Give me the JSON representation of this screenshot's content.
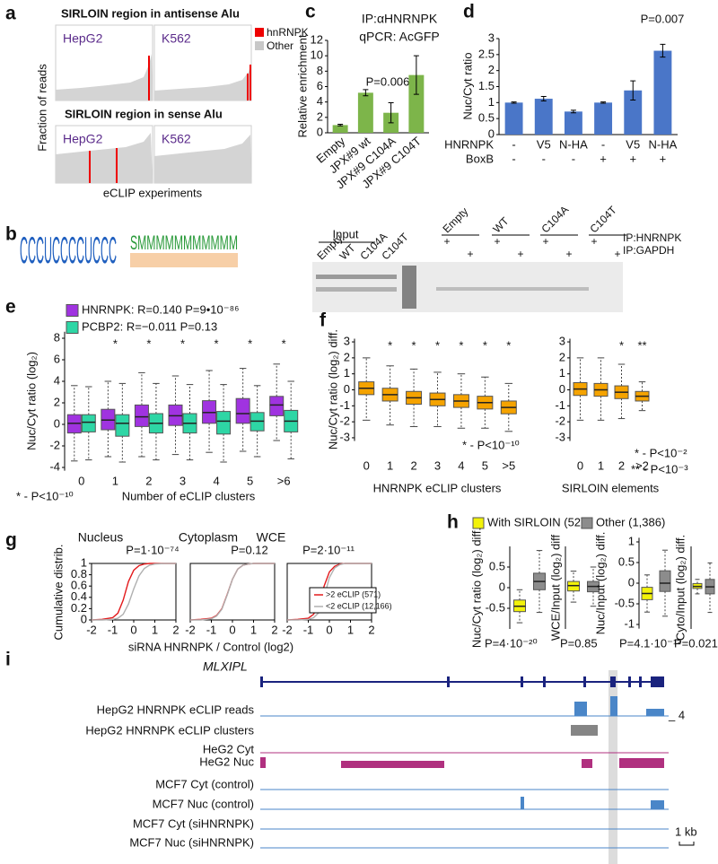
{
  "panel_labels": [
    "a",
    "b",
    "c",
    "d",
    "e",
    "f",
    "g",
    "h",
    "i"
  ],
  "panel_a": {
    "title_antisense": "SIRLOIN region in antisense Alu",
    "title_sense": "SIRLOIN region in sense Alu",
    "cells": [
      "HepG2",
      "K562",
      "HepG2",
      "K562"
    ],
    "legend": [
      "hnRNPK",
      "Other"
    ],
    "y_label": "Fraction of reads",
    "x_label": "eCLIP experiments"
  },
  "panel_b": {
    "logos": [
      "CCCUCCCCUCCC",
      "SMMMMMMMMMMM"
    ]
  },
  "blot": {
    "input": "Input",
    "lanes": [
      "Empty",
      "WT",
      "C104A",
      "C104T"
    ],
    "ip_groups": [
      "Empty",
      "WT",
      "C104A",
      "C104T"
    ],
    "signs": [
      "+",
      "+",
      "+",
      "+",
      "+",
      "+",
      "+",
      "+"
    ],
    "rows": [
      "IP:HNRNPK",
      "IP:GAPDH"
    ]
  },
  "panel_i": {
    "gene": "MLXIPL",
    "tracks": [
      "HepG2 HNRNPK eCLIP reads",
      "HepG2 HNRNPK eCLIP clusters",
      "HeG2 Cyt",
      "HeG2 Nuc",
      "MCF7 Cyt (control)",
      "MCF7 Nuc (control)",
      "MCF7 Cyt (siHNRNPK)",
      "MCF7 Nuc (siHNRNPK)"
    ],
    "scale": "_ 4",
    "scalebar": "1 kb"
  },
  "chart_data": [
    {
      "type": "bar",
      "title": "IP:αHNRNPK",
      "subtitle": "qPCR: AcGFP",
      "y_label": "Relative enrichment",
      "categories": [
        "Empty",
        "JPX#9 wt",
        "JPX#9 C104A",
        "JPX#9 C104T"
      ],
      "values": [
        1,
        5.2,
        2.6,
        7.5
      ],
      "errors": [
        0.1,
        0.4,
        1.3,
        2.5
      ],
      "color": "#7db54a",
      "ylim": [
        0,
        12
      ],
      "yticks": [
        0,
        2,
        4,
        6,
        8,
        10,
        12
      ],
      "annotations": [
        "P=0.006"
      ]
    },
    {
      "type": "bar",
      "y_label": "Nuc/Cyt ratio",
      "values": [
        1,
        1.12,
        0.72,
        1,
        1.38,
        2.62
      ],
      "errors": [
        0.02,
        0.07,
        0.04,
        0.02,
        0.3,
        0.2
      ],
      "color": "#4a76c8",
      "ylim": [
        0,
        3
      ],
      "yticks": [
        0,
        0.5,
        1,
        1.5,
        2,
        2.5,
        3
      ],
      "row_labels": [
        "HNRNPK",
        "BoxB"
      ],
      "rows": [
        [
          "-",
          "V5",
          "N-HA",
          "-",
          "V5",
          "N-HA"
        ],
        [
          "-",
          "-",
          "-",
          "+",
          "+",
          "+"
        ]
      ],
      "annotations": [
        "P=0.007"
      ]
    },
    {
      "type": "box",
      "y_label": "Nuc/Cyt ratio (log₂)",
      "x_label": "Number of eCLIP clusters",
      "annotations": [
        "* - P<10⁻¹⁰"
      ],
      "categories": [
        "0",
        "1",
        "2",
        "3",
        "4",
        "5",
        ">6"
      ],
      "stars": [
        null,
        "*",
        "*",
        "*",
        "*",
        "*",
        "*"
      ],
      "ylim": [
        -4.3,
        8.6
      ],
      "yticks": [
        -4,
        -2,
        0,
        2,
        4,
        6,
        8
      ],
      "series": [
        {
          "name": "HNRNPK: R=0.140 P=9•10⁻⁸⁶",
          "color": "#a033e0",
          "q1": [
            -0.8,
            -0.5,
            -0.2,
            -0.1,
            0.1,
            0.1,
            0.8
          ],
          "median": [
            0.1,
            0.4,
            0.7,
            0.8,
            1.1,
            1,
            1.8
          ],
          "q3": [
            0.9,
            1.4,
            1.8,
            1.8,
            2.2,
            2.4,
            2.6
          ],
          "whisker_low": [
            -3.4,
            -3,
            -3,
            -2.8,
            -2.6,
            -2.5,
            -1.5
          ],
          "whisker_high": [
            3.6,
            4,
            4.8,
            4.5,
            5,
            5.2,
            5.6
          ]
        },
        {
          "name": "PCBP2: R=−0.011 P=0.13",
          "color": "#2ed6a5",
          "q1": [
            -0.7,
            -1.1,
            -0.8,
            -0.8,
            -0.9,
            -0.6,
            -0.7
          ],
          "median": [
            0.2,
            0.1,
            0.1,
            0.1,
            0.3,
            0.3,
            0.3
          ],
          "q3": [
            0.9,
            0.9,
            1,
            1,
            1.2,
            1.1,
            1.3
          ],
          "whisker_low": [
            -3.3,
            -3.5,
            -3.3,
            -3.3,
            -3.5,
            -3,
            -3.2
          ],
          "whisker_high": [
            3.5,
            3.8,
            3.8,
            3.7,
            3.7,
            3.6,
            4
          ]
        }
      ]
    },
    {
      "type": "box",
      "y_label": "Nuc/Cyt ratio (log₂) diff.",
      "x_label": "HNRNPK eCLIP clusters",
      "annotations": [
        "* - P<10⁻¹⁰"
      ],
      "categories": [
        "0",
        "1",
        "2",
        "3",
        "4",
        "5",
        ">5"
      ],
      "stars": [
        null,
        "*",
        "*",
        "*",
        "*",
        "*",
        "*"
      ],
      "ylim": [
        -3.2,
        3.2
      ],
      "yticks": [
        -3,
        -2,
        -1,
        0,
        1,
        2,
        3
      ],
      "series": [
        {
          "color": "#f5a300",
          "q1": [
            -0.3,
            -0.7,
            -0.9,
            -1,
            -1.1,
            -1.2,
            -1.5
          ],
          "median": [
            0.1,
            -0.3,
            -0.5,
            -0.6,
            -0.7,
            -0.8,
            -1.1
          ],
          "q3": [
            0.5,
            0.1,
            -0.1,
            -0.2,
            -0.3,
            -0.4,
            -0.7
          ],
          "whisker_low": [
            -1.9,
            -2.2,
            -2.3,
            -2.3,
            -2.4,
            -2.4,
            -2.6
          ],
          "whisker_high": [
            2,
            1.5,
            1.3,
            1.1,
            1,
            0.8,
            0.4
          ]
        }
      ]
    },
    {
      "type": "box",
      "x_label": "SIRLOIN elements",
      "annotations": [
        "* - P<10⁻²",
        "** - P<10⁻³"
      ],
      "categories": [
        "0",
        "1",
        "2",
        ">2"
      ],
      "stars": [
        null,
        null,
        "*",
        "**"
      ],
      "ylim": [
        -3.2,
        3.2
      ],
      "yticks": [
        -3,
        -2,
        -1,
        0,
        1,
        2,
        3
      ],
      "series": [
        {
          "color": "#f5a300",
          "q1": [
            -0.35,
            -0.4,
            -0.55,
            -0.7
          ],
          "median": [
            0.05,
            0,
            -0.15,
            -0.4
          ],
          "q3": [
            0.45,
            0.4,
            0.25,
            -0.1
          ],
          "whisker_low": [
            -1.9,
            -1.9,
            -1.8,
            -1.3
          ],
          "whisker_high": [
            2,
            2,
            1.6,
            0.5
          ]
        }
      ]
    },
    {
      "type": "line",
      "title": "Nucleus",
      "annotations": [
        "P=1·10⁻⁷⁴"
      ],
      "y_label": "Cumulative distrib.",
      "x": [
        -2,
        -1.5,
        -1,
        -0.75,
        -0.5,
        -0.25,
        0,
        0.25,
        0.5,
        0.75,
        1,
        1.5,
        2
      ],
      "xlim": [
        -2,
        2
      ],
      "xticks": [
        -2,
        -1,
        0,
        1,
        2
      ],
      "ylim": [
        0,
        1
      ],
      "yticks": [
        0,
        0.2,
        0.4,
        0.6,
        0.8,
        1
      ],
      "series": [
        {
          "color": "#e31a1c",
          "values": [
            0,
            0.01,
            0.04,
            0.12,
            0.35,
            0.68,
            0.88,
            0.96,
            0.99,
            1,
            1,
            1,
            1
          ]
        },
        {
          "color": "#b0b0b0",
          "values": [
            0,
            0,
            0.01,
            0.03,
            0.1,
            0.28,
            0.55,
            0.78,
            0.91,
            0.97,
            0.99,
            1,
            1
          ]
        }
      ]
    },
    {
      "type": "line",
      "title": "Cytoplasm",
      "annotations": [
        "P=0.12"
      ],
      "x_label": "siRNA HNRNPK / Control (log2)",
      "x": [
        -2,
        -1.5,
        -1,
        -0.75,
        -0.5,
        -0.25,
        0,
        0.25,
        0.5,
        0.75,
        1,
        1.5,
        2
      ],
      "xlim": [
        -2,
        2
      ],
      "xticks": [
        -2,
        -1,
        0,
        1,
        2
      ],
      "ylim": [
        0,
        1
      ],
      "series": [
        {
          "color": "#e31a1c",
          "values": [
            0,
            0.01,
            0.03,
            0.08,
            0.2,
            0.45,
            0.72,
            0.9,
            0.97,
            0.99,
            1,
            1,
            1
          ]
        },
        {
          "color": "#b0b0b0",
          "values": [
            0,
            0,
            0.02,
            0.07,
            0.19,
            0.44,
            0.72,
            0.9,
            0.97,
            0.99,
            1,
            1,
            1
          ]
        }
      ]
    },
    {
      "type": "line",
      "title": "WCE",
      "annotations": [
        "P=2·10⁻¹¹"
      ],
      "x": [
        -2,
        -1.5,
        -1,
        -0.75,
        -0.5,
        -0.25,
        0,
        0.25,
        0.5,
        0.75,
        1,
        1.5,
        2
      ],
      "xlim": [
        -2,
        2
      ],
      "xticks": [
        -2,
        -1,
        0,
        1,
        2
      ],
      "ylim": [
        0,
        1
      ],
      "series": [
        {
          "name": ">2 eCLIP (571)",
          "color": "#e31a1c",
          "values": [
            0,
            0.01,
            0.03,
            0.1,
            0.28,
            0.6,
            0.85,
            0.95,
            0.99,
            1,
            1,
            1,
            1
          ]
        },
        {
          "name": "<2 eCLIP (12,166)",
          "color": "#b0b0b0",
          "values": [
            0,
            0,
            0.01,
            0.04,
            0.13,
            0.4,
            0.75,
            0.92,
            0.98,
            1,
            1,
            1,
            1
          ]
        }
      ]
    },
    {
      "type": "box",
      "y_label": "Nuc/Cyt ratio (log₂) diff.",
      "annotations": [
        "P=4·10⁻²⁰"
      ],
      "categories": [
        null
      ],
      "ylim": [
        -1,
        1
      ],
      "yticks": [
        -0.5,
        0,
        0.5
      ],
      "series": [
        {
          "name": "With SIRLOIN (52)",
          "color": "#f2f20a",
          "q1": [
            -0.58
          ],
          "median": [
            -0.45
          ],
          "q3": [
            -0.3
          ],
          "whisker_low": [
            -0.85
          ],
          "whisker_high": [
            -0.05
          ]
        },
        {
          "name": "Other (1,386)",
          "color": "#8c8c8c",
          "q1": [
            -0.05
          ],
          "median": [
            0.15
          ],
          "q3": [
            0.35
          ],
          "whisker_low": [
            -0.6
          ],
          "whisker_high": [
            0.9
          ]
        }
      ]
    },
    {
      "type": "box",
      "y_label": "WCE/Input (log₂) diff",
      "annotations": [
        "P=0.85"
      ],
      "categories": [
        null
      ],
      "ylim": [
        -1,
        1
      ],
      "series": [
        {
          "color": "#f2f20a",
          "q1": [
            -0.08
          ],
          "median": [
            0.05
          ],
          "q3": [
            0.15
          ],
          "whisker_low": [
            -0.35
          ],
          "whisker_high": [
            0.4
          ]
        },
        {
          "color": "#8c8c8c",
          "q1": [
            -0.1
          ],
          "median": [
            0.03
          ],
          "q3": [
            0.15
          ],
          "whisker_low": [
            -0.45
          ],
          "whisker_high": [
            0.5
          ]
        }
      ]
    },
    {
      "type": "box",
      "y_label": "Nuc/Input (log₂) diff.",
      "annotations": [
        "P=4.1·10⁻¹²"
      ],
      "categories": [
        null
      ],
      "ylim": [
        -1.1,
        1.1
      ],
      "yticks": [
        -1,
        -0.5,
        0,
        0.5,
        1
      ],
      "series": [
        {
          "color": "#f2f20a",
          "q1": [
            -0.4
          ],
          "median": [
            -0.25
          ],
          "q3": [
            -0.1
          ],
          "whisker_low": [
            -0.7
          ],
          "whisker_high": [
            0.2
          ]
        },
        {
          "color": "#8c8c8c",
          "q1": [
            -0.2
          ],
          "median": [
            0
          ],
          "q3": [
            0.3
          ],
          "whisker_low": [
            -0.8
          ],
          "whisker_high": [
            0.8
          ]
        }
      ]
    },
    {
      "type": "box",
      "y_label": "Cyto/Input (log₂) diff.",
      "annotations": [
        "P=0.021"
      ],
      "categories": [
        null
      ],
      "ylim": [
        -1,
        1
      ],
      "series": [
        {
          "color": "#f2f20a",
          "q1": [
            -0.02
          ],
          "median": [
            0.03
          ],
          "q3": [
            0.1
          ],
          "whisker_low": [
            -0.15
          ],
          "whisker_high": [
            0.2
          ]
        },
        {
          "color": "#8c8c8c",
          "q1": [
            -0.15
          ],
          "median": [
            0.02
          ],
          "q3": [
            0.2
          ],
          "whisker_low": [
            -0.6
          ],
          "whisker_high": [
            0.6
          ]
        }
      ]
    }
  ]
}
